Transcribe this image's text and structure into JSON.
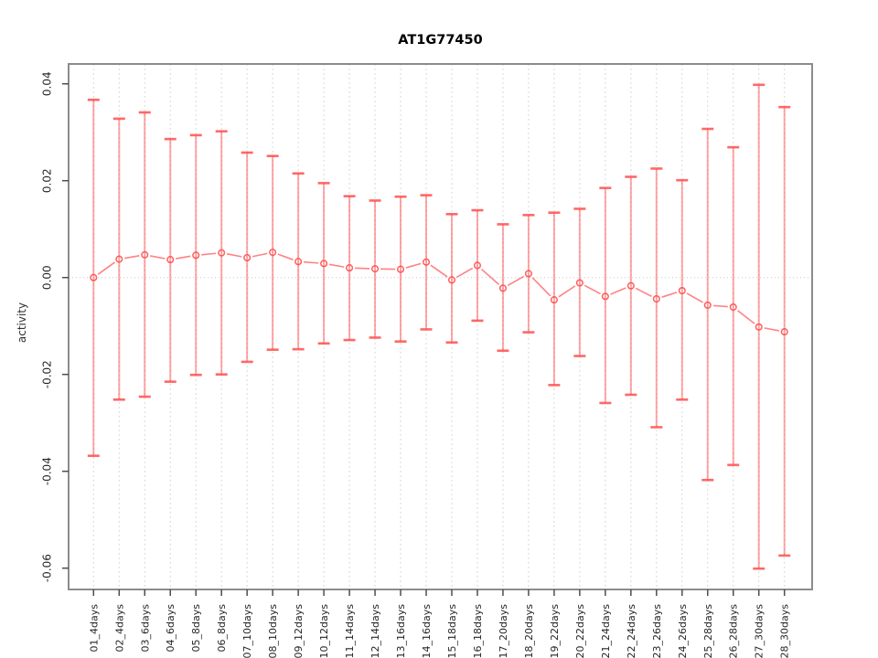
{
  "page": {
    "background": "#ffffff"
  },
  "chart_data": {
    "type": "scatter",
    "title": "AT1G77450",
    "xlabel": "",
    "ylabel": "activity",
    "legend": "none",
    "grid": "vertical dotted line per category; horizontal dotted line at zero",
    "point_style": "open-circle",
    "connected": true,
    "error_bars": true,
    "ylim": [
      -0.0644,
      0.0441
    ],
    "yticks": [
      0.04,
      0.02,
      0.0,
      -0.02,
      -0.04,
      -0.06
    ],
    "ytick_labels": [
      "0.04",
      "0.02",
      "0.00",
      "-0.02",
      "-0.04",
      "-0.06"
    ],
    "categories": [
      "01_4days",
      "02_4days",
      "03_6days",
      "04_6days",
      "05_8days",
      "06_8days",
      "07_10days",
      "08_10days",
      "09_12days",
      "10_12days",
      "11_14days",
      "12_14days",
      "13_16days",
      "14_16days",
      "15_18days",
      "16_18days",
      "17_20days",
      "18_20days",
      "19_22days",
      "20_22days",
      "21_24days",
      "22_24days",
      "23_26days",
      "24_26days",
      "25_28days",
      "26_28days",
      "27_30days",
      "28_30days"
    ],
    "series": [
      {
        "name": "activity",
        "values": [
          0.0,
          0.0038,
          0.0047,
          0.0037,
          0.0046,
          0.0051,
          0.0041,
          0.0052,
          0.0033,
          0.0029,
          0.002,
          0.0018,
          0.0017,
          0.0032,
          -0.0005,
          0.0025,
          -0.0022,
          0.0008,
          -0.0046,
          -0.0011,
          -0.0039,
          -0.0017,
          -0.0044,
          -0.0027,
          -0.0057,
          -0.0061,
          -0.0102,
          -0.0112
        ],
        "upper": [
          0.0367,
          0.0328,
          0.0341,
          0.0286,
          0.0294,
          0.0302,
          0.0258,
          0.0251,
          0.0215,
          0.0195,
          0.0168,
          0.0159,
          0.0167,
          0.017,
          0.0131,
          0.0139,
          0.011,
          0.0129,
          0.0134,
          0.0142,
          0.0185,
          0.0208,
          0.0225,
          0.0201,
          0.0307,
          0.0269,
          0.0398,
          0.0352
        ],
        "lower": [
          -0.0368,
          -0.0252,
          -0.0246,
          -0.0215,
          -0.0201,
          -0.02,
          -0.0174,
          -0.0149,
          -0.0148,
          -0.0136,
          -0.0129,
          -0.0124,
          -0.0132,
          -0.0107,
          -0.0134,
          -0.0089,
          -0.0151,
          -0.0113,
          -0.0222,
          -0.0162,
          -0.0259,
          -0.0242,
          -0.0309,
          -0.0252,
          -0.0418,
          -0.0387,
          -0.0601,
          -0.0574
        ]
      }
    ],
    "colors": {
      "series": "#ff4d4d",
      "grid": "#d9d9d9",
      "zero_line": "#c8c8c8",
      "box": "#8c8c8c",
      "tick": "#4d4d4d",
      "tick_text": "#262626",
      "title_text": "#000000"
    }
  }
}
